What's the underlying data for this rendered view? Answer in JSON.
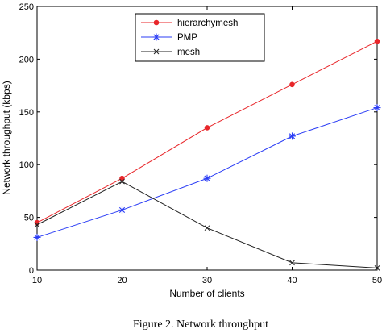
{
  "chart_data": {
    "type": "line",
    "title": "",
    "xlabel": "Number of clients",
    "ylabel": "Network throughput (kbps)",
    "x": [
      10,
      20,
      30,
      40,
      50
    ],
    "xlim": [
      10,
      50
    ],
    "ylim": [
      0,
      250
    ],
    "xticks": [
      "10",
      "20",
      "30",
      "40",
      "50"
    ],
    "yticks": [
      "0",
      "50",
      "100",
      "150",
      "200",
      "250"
    ],
    "grid": false,
    "legend_position": "top-center",
    "series": [
      {
        "name": "hierarchymesh",
        "values": [
          45,
          87,
          135,
          176,
          217
        ],
        "color": "#e8262a",
        "marker": "dot"
      },
      {
        "name": "PMP",
        "values": [
          31,
          57,
          87,
          127,
          154
        ],
        "color": "#2b3df5",
        "marker": "star"
      },
      {
        "name": "mesh",
        "values": [
          43,
          84,
          40,
          7,
          2
        ],
        "color": "#222222",
        "marker": "x"
      }
    ]
  },
  "caption": "Figure 2.    Network throughput"
}
